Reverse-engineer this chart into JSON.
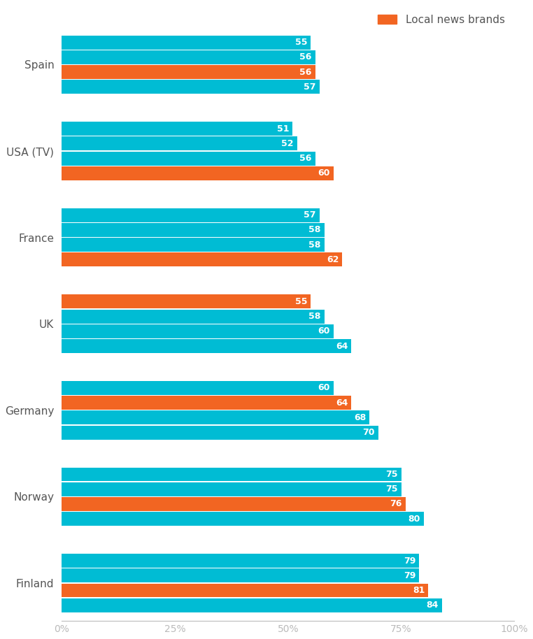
{
  "groups": [
    {
      "country": "Spain",
      "bars": [
        {
          "value": 55,
          "color": "#00BCD4"
        },
        {
          "value": 56,
          "color": "#00BCD4"
        },
        {
          "value": 56,
          "color": "#F26522"
        },
        {
          "value": 57,
          "color": "#00BCD4"
        }
      ]
    },
    {
      "country": "USA (TV)",
      "bars": [
        {
          "value": 51,
          "color": "#00BCD4"
        },
        {
          "value": 52,
          "color": "#00BCD4"
        },
        {
          "value": 56,
          "color": "#00BCD4"
        },
        {
          "value": 60,
          "color": "#F26522"
        }
      ]
    },
    {
      "country": "France",
      "bars": [
        {
          "value": 57,
          "color": "#00BCD4"
        },
        {
          "value": 58,
          "color": "#00BCD4"
        },
        {
          "value": 58,
          "color": "#00BCD4"
        },
        {
          "value": 62,
          "color": "#F26522"
        }
      ]
    },
    {
      "country": "UK",
      "bars": [
        {
          "value": 55,
          "color": "#F26522"
        },
        {
          "value": 58,
          "color": "#00BCD4"
        },
        {
          "value": 60,
          "color": "#00BCD4"
        },
        {
          "value": 64,
          "color": "#00BCD4"
        }
      ]
    },
    {
      "country": "Germany",
      "bars": [
        {
          "value": 60,
          "color": "#00BCD4"
        },
        {
          "value": 64,
          "color": "#F26522"
        },
        {
          "value": 68,
          "color": "#00BCD4"
        },
        {
          "value": 70,
          "color": "#00BCD4"
        }
      ]
    },
    {
      "country": "Norway",
      "bars": [
        {
          "value": 75,
          "color": "#00BCD4"
        },
        {
          "value": 75,
          "color": "#00BCD4"
        },
        {
          "value": 76,
          "color": "#F26522"
        },
        {
          "value": 80,
          "color": "#00BCD4"
        }
      ]
    },
    {
      "country": "Finland",
      "bars": [
        {
          "value": 79,
          "color": "#00BCD4"
        },
        {
          "value": 79,
          "color": "#00BCD4"
        },
        {
          "value": 81,
          "color": "#F26522"
        },
        {
          "value": 84,
          "color": "#00BCD4"
        }
      ]
    }
  ],
  "teal_color": "#00BCD4",
  "orange_color": "#F26522",
  "legend_label": "Local news brands",
  "xlabel_ticks": [
    0,
    25,
    50,
    75,
    100
  ],
  "xlabel_labels": [
    "0%",
    "25%",
    "50%",
    "75%",
    "100%"
  ],
  "background_color": "#FFFFFF",
  "text_color_white": "#FFFFFF",
  "label_fontsize": 9,
  "country_fontsize": 11,
  "tick_fontsize": 10,
  "country_label_color": "#555555",
  "tick_color": "#888888"
}
